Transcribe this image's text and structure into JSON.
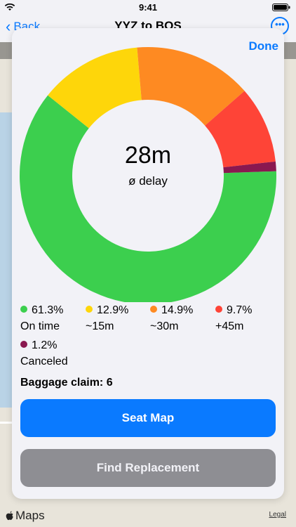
{
  "status_bar": {
    "time": "9:41"
  },
  "nav": {
    "back_label": "Back",
    "title": "YYZ to BOS",
    "more_icon": "ellipsis-icon"
  },
  "map": {
    "brand": "Maps",
    "legal": "Legal"
  },
  "sheet": {
    "done_label": "Done",
    "center_value": "28m",
    "center_label": "ø delay",
    "baggage": "Baggage claim: 6",
    "primary_button": "Seat Map",
    "secondary_button": "Find Replacement"
  },
  "colors": {
    "accent": "#0a7aff",
    "on_time": "#3ccf4e",
    "delay_15": "#fed60a",
    "delay_30": "#fe8a22",
    "delay_45": "#fe4437",
    "canceled": "#8a1850",
    "secondary_button": "#8e8e93"
  },
  "chart_data": {
    "type": "pie",
    "categories": [
      "On time",
      "~15m",
      "~30m",
      "+45m",
      "Canceled"
    ],
    "values": [
      61.3,
      12.9,
      14.9,
      9.7,
      1.2
    ],
    "labels": [
      "61.3%",
      "12.9%",
      "14.9%",
      "9.7%",
      "1.2%"
    ],
    "colors": [
      "#3ccf4e",
      "#fed60a",
      "#fe8a22",
      "#fe4437",
      "#8a1850"
    ]
  }
}
